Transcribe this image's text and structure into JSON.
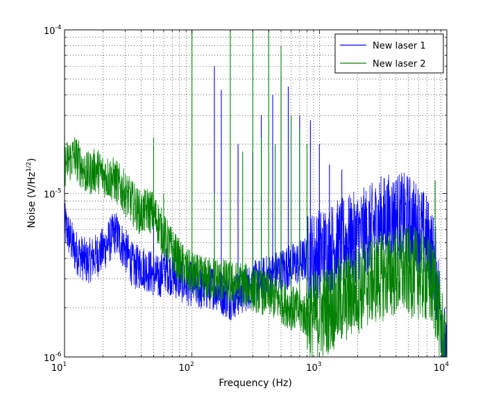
{
  "chart_data": {
    "type": "line",
    "title": "",
    "xlabel": "Frequency (Hz)",
    "ylabel_main": "Noise (V/Hz",
    "ylabel_exp": "1/2",
    "ylabel_close": ")",
    "xscale": "log",
    "yscale": "log",
    "xlim": [
      10,
      10000
    ],
    "ylim": [
      1e-06,
      0.0001
    ],
    "grid": true,
    "legend_position": "top-right",
    "x_ticks": [
      {
        "base": "10",
        "exp": "1"
      },
      {
        "base": "10",
        "exp": "2"
      },
      {
        "base": "10",
        "exp": "3"
      },
      {
        "base": "10",
        "exp": "4"
      }
    ],
    "y_ticks": [
      {
        "base": "10",
        "exp": "-6"
      },
      {
        "base": "10",
        "exp": "-5"
      },
      {
        "base": "10",
        "exp": "-4"
      }
    ],
    "series": [
      {
        "name": "New laser 1",
        "color": "#0000ff",
        "x": [
          10,
          12,
          15,
          18,
          20,
          25,
          30,
          35,
          40,
          45,
          50,
          55,
          60,
          70,
          80,
          90,
          100,
          120,
          150,
          180,
          200,
          250,
          300,
          400,
          500,
          600,
          700,
          800,
          1000,
          1200,
          1500,
          2000,
          2500,
          3000,
          4000,
          5000,
          6000,
          7000,
          8000,
          9000,
          10000
        ],
        "values": [
          6.5e-06,
          4.5e-06,
          3.8e-06,
          4.2e-06,
          4.5e-06,
          5.8e-06,
          4.5e-06,
          3.5e-06,
          3.6e-06,
          3.4e-06,
          3.2e-06,
          3e-06,
          3.5e-06,
          3.2e-06,
          3e-06,
          2.8e-06,
          2.8e-06,
          2.6e-06,
          2.7e-06,
          2.4e-06,
          2.3e-06,
          2.5e-06,
          2.8e-06,
          3.1e-06,
          3.4e-06,
          3.6e-06,
          3.8e-06,
          4e-06,
          4.3e-06,
          4.6e-06,
          5e-06,
          5.5e-06,
          6e-06,
          6.8e-06,
          7.2e-06,
          7e-06,
          6.2e-06,
          5.2e-06,
          3.8e-06,
          1.8e-06,
          8e-07
        ],
        "peaks": [
          [
            50,
            8e-06
          ],
          [
            150,
            6e-05
          ],
          [
            170,
            4.3e-05
          ],
          [
            230,
            2e-05
          ],
          [
            300,
            1.8e-05
          ],
          [
            350,
            3e-05
          ],
          [
            430,
            4e-05
          ],
          [
            500,
            5.2e-05
          ],
          [
            570,
            4.5e-05
          ],
          [
            700,
            3e-05
          ],
          [
            850,
            2.8e-05
          ],
          [
            1000,
            2e-05
          ],
          [
            1200,
            1.5e-05
          ],
          [
            1500,
            1.4e-05
          ]
        ]
      },
      {
        "name": "New laser 2",
        "color": "#008000",
        "x": [
          10,
          12,
          15,
          18,
          20,
          25,
          30,
          35,
          40,
          45,
          50,
          55,
          60,
          70,
          80,
          90,
          100,
          120,
          150,
          180,
          200,
          250,
          300,
          400,
          500,
          600,
          700,
          800,
          1000,
          1200,
          1500,
          2000,
          2500,
          3000,
          4000,
          5000,
          6000,
          7000,
          8000,
          9000,
          10000
        ],
        "values": [
          1.5e-05,
          1.7e-05,
          1.3e-05,
          1.4e-05,
          1.3e-05,
          1.2e-05,
          1e-05,
          8.5e-06,
          7.5e-06,
          8e-06,
          7.5e-06,
          6.5e-06,
          5.5e-06,
          4.5e-06,
          3.8e-06,
          3.4e-06,
          3.2e-06,
          3e-06,
          3e-06,
          2.9e-06,
          2.8e-06,
          2.8e-06,
          2.6e-06,
          2.4e-06,
          2.2e-06,
          2e-06,
          1.9e-06,
          1.8e-06,
          1.8e-06,
          2e-06,
          2.2e-06,
          2.6e-06,
          2.9e-06,
          3.1e-06,
          3.3e-06,
          3.3e-06,
          3.2e-06,
          3e-06,
          2.6e-06,
          1.6e-06,
          8e-07
        ],
        "peaks": [
          [
            50,
            2.2e-05
          ],
          [
            60,
            1e-05
          ],
          [
            100,
            0.0001
          ],
          [
            150,
            1e-05
          ],
          [
            200,
            0.0001
          ],
          [
            250,
            1.8e-05
          ],
          [
            300,
            0.0001
          ],
          [
            350,
            2.2e-05
          ],
          [
            400,
            0.0001
          ],
          [
            450,
            2e-05
          ],
          [
            500,
            8e-05
          ],
          [
            600,
            3e-05
          ],
          [
            700,
            2.5e-05
          ],
          [
            800,
            2e-05
          ],
          [
            8100,
            1.2e-05
          ]
        ]
      }
    ]
  }
}
